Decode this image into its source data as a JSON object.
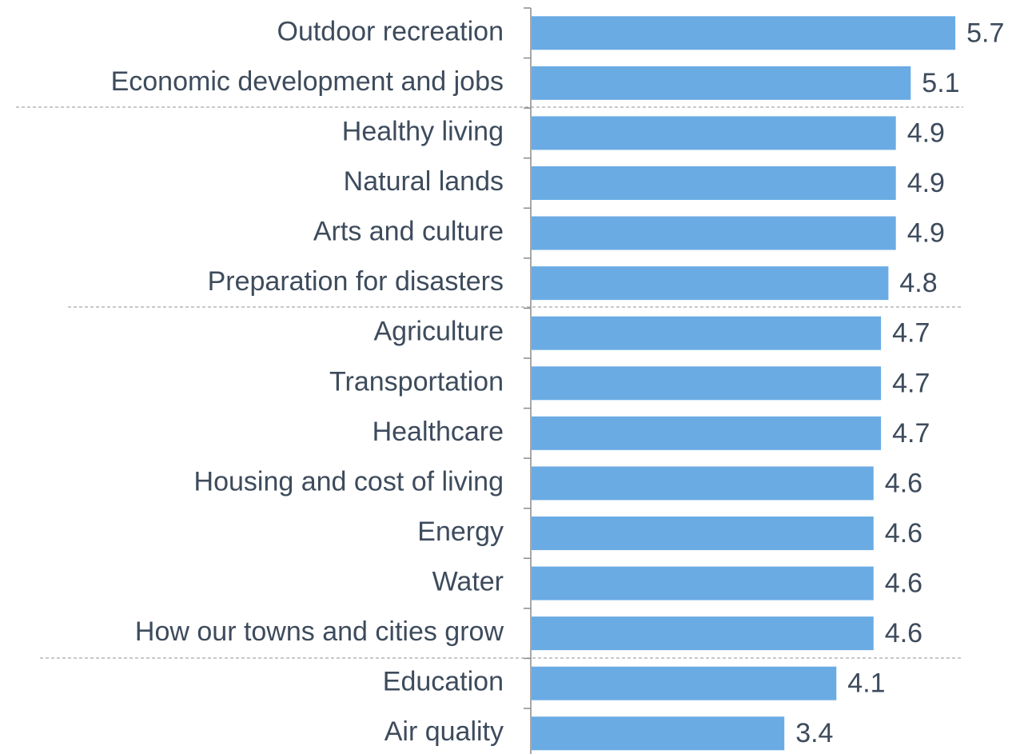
{
  "chart_data": {
    "type": "barh",
    "categories": [
      "Outdoor recreation",
      "Economic development and jobs",
      "Healthy living",
      "Natural lands",
      "Arts and culture",
      "Preparation for disasters",
      "Agriculture",
      "Transportation",
      "Healthcare",
      "Housing and cost of living",
      "Energy",
      "Water",
      "How our towns and cities grow",
      "Education",
      "Air quality"
    ],
    "values": [
      5.7,
      5.1,
      4.9,
      4.9,
      4.9,
      4.8,
      4.7,
      4.7,
      4.7,
      4.6,
      4.6,
      4.6,
      4.6,
      4.1,
      3.4
    ],
    "color": "#6aabe4",
    "xlim": [
      0,
      6
    ]
  }
}
